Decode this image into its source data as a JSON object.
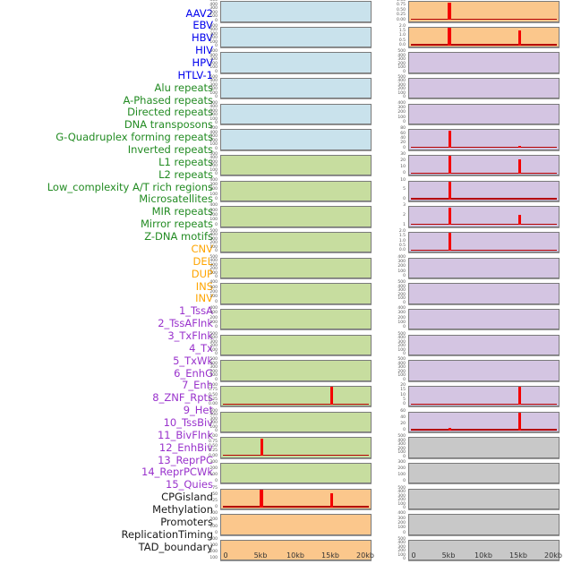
{
  "palette": {
    "virus_text": "#0000EE",
    "repeat_text": "#228B22",
    "sv_text": "#FFA500",
    "state_text": "#9932CC",
    "other_text": "#1A1A1A",
    "virus_bg": "#C9E2EC",
    "repeat_bg": "#C7DD9F",
    "sv_bg": "#FBC78C",
    "state_bg": "#D4C5E2",
    "other_bg": "#C8C8C8",
    "spike_color": "#F40000",
    "baseline_color": "#B40000"
  },
  "chart_data": {
    "type": "line",
    "layout": "small-multiples, 22 rows x 2 columns; first 22 panels in left column (top to bottom), last 22 in right column",
    "x_ticks": [
      "0",
      "5kb",
      "10kb",
      "15kb",
      "20kb"
    ],
    "x_range_kb": [
      0,
      20
    ],
    "grid": false,
    "panels": [
      {
        "label": "AAV2",
        "group": "virus",
        "y_ticks": [
          "500",
          "400",
          "300",
          "200",
          "100",
          "0"
        ],
        "baseline": false,
        "spikes": []
      },
      {
        "label": "EBV",
        "group": "virus",
        "y_ticks": [
          "500",
          "400",
          "300",
          "200",
          "100",
          "0"
        ],
        "baseline": false,
        "spikes": []
      },
      {
        "label": "HBV",
        "group": "virus",
        "y_ticks": [
          "500",
          "400",
          "300",
          "200",
          "100",
          "0"
        ],
        "baseline": false,
        "spikes": []
      },
      {
        "label": "HIV",
        "group": "virus",
        "y_ticks": [
          "500",
          "400",
          "300",
          "200",
          "100",
          "0"
        ],
        "baseline": false,
        "spikes": []
      },
      {
        "label": "HPV",
        "group": "virus",
        "y_ticks": [
          "500",
          "400",
          "300",
          "200",
          "100",
          "0"
        ],
        "baseline": false,
        "spikes": []
      },
      {
        "label": "HTLV-1",
        "group": "virus",
        "y_ticks": [
          "500",
          "400",
          "300",
          "200",
          "100",
          "0"
        ],
        "baseline": false,
        "spikes": []
      },
      {
        "label": "Alu repeats",
        "group": "repeat",
        "y_ticks": [
          "500",
          "400",
          "300",
          "200",
          "100",
          "0"
        ],
        "baseline": false,
        "spikes": []
      },
      {
        "label": "A-Phased repeats",
        "group": "repeat",
        "y_ticks": [
          "400",
          "300",
          "200",
          "100",
          "0"
        ],
        "baseline": false,
        "spikes": []
      },
      {
        "label": "Directed repeats",
        "group": "repeat",
        "y_ticks": [
          "400",
          "300",
          "200",
          "100",
          "0"
        ],
        "baseline": false,
        "spikes": []
      },
      {
        "label": "DNA transposons",
        "group": "repeat",
        "y_ticks": [
          "500",
          "400",
          "300",
          "200",
          "100",
          "0"
        ],
        "baseline": false,
        "spikes": []
      },
      {
        "label": "G-Quadruplex forming repeats",
        "group": "repeat",
        "y_ticks": [
          "500",
          "400",
          "300",
          "200",
          "100",
          "0"
        ],
        "baseline": false,
        "spikes": []
      },
      {
        "label": "Inverted repeats",
        "group": "repeat",
        "y_ticks": [
          "400",
          "300",
          "200",
          "100",
          "0"
        ],
        "baseline": false,
        "spikes": []
      },
      {
        "label": "L1 repeats",
        "group": "repeat",
        "y_ticks": [
          "400",
          "300",
          "200",
          "100",
          "0"
        ],
        "baseline": false,
        "spikes": []
      },
      {
        "label": "L2 repeats",
        "group": "repeat",
        "y_ticks": [
          "500",
          "400",
          "300",
          "200",
          "100",
          "0"
        ],
        "baseline": false,
        "spikes": []
      },
      {
        "label": "Low_complexity A/T rich regions",
        "group": "repeat",
        "y_ticks": [
          "500",
          "400",
          "300",
          "200",
          "100",
          "0"
        ],
        "baseline": false,
        "spikes": []
      },
      {
        "label": "Microsatellites",
        "group": "repeat",
        "y_ticks": [
          "1.00",
          "0.75",
          "0.50",
          "0.25",
          "0.00"
        ],
        "baseline": true,
        "spikes": [
          {
            "x_kb": 15,
            "h": 1.0,
            "wide": false
          }
        ]
      },
      {
        "label": "MIR repeats",
        "group": "repeat",
        "y_ticks": [
          "500",
          "400",
          "300",
          "200",
          "100",
          "0"
        ],
        "baseline": false,
        "spikes": []
      },
      {
        "label": "Mirror repeats",
        "group": "repeat",
        "y_ticks": [
          "1.00",
          "0.75",
          "0.50",
          "0.25",
          "0.00"
        ],
        "baseline": true,
        "spikes": [
          {
            "x_kb": 5,
            "h": 1.0,
            "wide": false
          }
        ]
      },
      {
        "label": "Z-DNA motifs",
        "group": "repeat",
        "y_ticks": [
          "300",
          "200",
          "100",
          "0"
        ],
        "baseline": false,
        "spikes": []
      },
      {
        "label": "CNV",
        "group": "sv",
        "y_ticks": [
          "75",
          "50",
          "25",
          "0"
        ],
        "baseline": true,
        "spikes": [
          {
            "x_kb": 5,
            "h": 1.0,
            "wide": true
          },
          {
            "x_kb": 15,
            "h": 0.8,
            "wide": false
          }
        ]
      },
      {
        "label": "DEL",
        "group": "sv",
        "y_ticks": [
          "300",
          "200",
          "100",
          "0"
        ],
        "baseline": false,
        "spikes": []
      },
      {
        "label": "DUP",
        "group": "sv",
        "y_ticks": [
          "400",
          "300",
          "200",
          "100"
        ],
        "baseline": false,
        "spikes": []
      },
      {
        "label": "INS",
        "group": "sv",
        "y_ticks": [
          "1.00",
          "0.75",
          "0.50",
          "0.25",
          "0.00"
        ],
        "baseline": true,
        "spikes": [
          {
            "x_kb": 5,
            "h": 1.0,
            "wide": true
          }
        ]
      },
      {
        "label": "INV",
        "group": "sv",
        "y_ticks": [
          "2.0",
          "1.5",
          "1.0",
          "0.5",
          "0.0"
        ],
        "baseline": true,
        "spikes": [
          {
            "x_kb": 5,
            "h": 1.0,
            "wide": true
          },
          {
            "x_kb": 15,
            "h": 0.85,
            "wide": false
          }
        ]
      },
      {
        "label": "1_TssA",
        "group": "state",
        "y_ticks": [
          "500",
          "400",
          "300",
          "200",
          "100",
          "0"
        ],
        "baseline": false,
        "spikes": []
      },
      {
        "label": "2_TssAFlnk",
        "group": "state",
        "y_ticks": [
          "500",
          "400",
          "300",
          "200",
          "100",
          "0"
        ],
        "baseline": false,
        "spikes": []
      },
      {
        "label": "3_TxFlnk",
        "group": "state",
        "y_ticks": [
          "400",
          "300",
          "200",
          "100",
          "0"
        ],
        "baseline": false,
        "spikes": []
      },
      {
        "label": "4_Tx",
        "group": "state",
        "y_ticks": [
          "80",
          "60",
          "40",
          "20",
          "0"
        ],
        "baseline": true,
        "spikes": [
          {
            "x_kb": 5,
            "h": 1.0,
            "wide": false
          },
          {
            "x_kb": 15,
            "h": 0.12,
            "wide": false
          }
        ]
      },
      {
        "label": "5_TxWk",
        "group": "state",
        "y_ticks": [
          "30",
          "20",
          "10",
          "0"
        ],
        "baseline": true,
        "spikes": [
          {
            "x_kb": 5,
            "h": 1.0,
            "wide": false
          },
          {
            "x_kb": 15,
            "h": 0.8,
            "wide": false
          }
        ]
      },
      {
        "label": "6_EnhG",
        "group": "state",
        "y_ticks": [
          "10",
          "5",
          "0"
        ],
        "baseline": true,
        "spikes": [
          {
            "x_kb": 5,
            "h": 1.0,
            "wide": false
          }
        ]
      },
      {
        "label": "7_Enh",
        "group": "state",
        "y_ticks": [
          "3",
          "2",
          "1"
        ],
        "baseline": true,
        "spikes": [
          {
            "x_kb": 5,
            "h": 1.0,
            "wide": false
          },
          {
            "x_kb": 15,
            "h": 0.6,
            "wide": false
          }
        ]
      },
      {
        "label": "8_ZNF_Rpts",
        "group": "state",
        "y_ticks": [
          "2.0",
          "1.5",
          "1.0",
          "0.5",
          "0.0"
        ],
        "baseline": true,
        "spikes": [
          {
            "x_kb": 5,
            "h": 1.0,
            "wide": false
          }
        ]
      },
      {
        "label": "9_Het",
        "group": "state",
        "y_ticks": [
          "400",
          "300",
          "200",
          "100",
          "0"
        ],
        "baseline": false,
        "spikes": []
      },
      {
        "label": "10_TssBiv",
        "group": "state",
        "y_ticks": [
          "500",
          "400",
          "300",
          "200",
          "100",
          "0"
        ],
        "baseline": false,
        "spikes": []
      },
      {
        "label": "11_BivFlnk",
        "group": "state",
        "y_ticks": [
          "400",
          "300",
          "200",
          "100",
          "0"
        ],
        "baseline": false,
        "spikes": []
      },
      {
        "label": "12_EnhBiv",
        "group": "state",
        "y_ticks": [
          "500",
          "400",
          "300",
          "200",
          "100",
          "0"
        ],
        "baseline": false,
        "spikes": []
      },
      {
        "label": "13_ReprPC",
        "group": "state",
        "y_ticks": [
          "500",
          "400",
          "300",
          "200",
          "100",
          "0"
        ],
        "baseline": false,
        "spikes": []
      },
      {
        "label": "14_ReprPCWk",
        "group": "state",
        "y_ticks": [
          "20",
          "15",
          "10",
          "5",
          "0"
        ],
        "baseline": true,
        "spikes": [
          {
            "x_kb": 15,
            "h": 1.0,
            "wide": false
          }
        ]
      },
      {
        "label": "15_Quies",
        "group": "state",
        "y_ticks": [
          "60",
          "40",
          "20",
          "0"
        ],
        "baseline": true,
        "spikes": [
          {
            "x_kb": 5,
            "h": 0.12,
            "wide": false
          },
          {
            "x_kb": 15,
            "h": 1.0,
            "wide": false
          }
        ]
      },
      {
        "label": "CPGisland",
        "group": "other",
        "y_ticks": [
          "500",
          "400",
          "300",
          "200",
          "100",
          "0"
        ],
        "baseline": false,
        "spikes": []
      },
      {
        "label": "Methylation",
        "group": "other",
        "y_ticks": [
          "300",
          "200",
          "100",
          "0"
        ],
        "baseline": false,
        "spikes": []
      },
      {
        "label": "Promoters",
        "group": "other",
        "y_ticks": [
          "500",
          "400",
          "300",
          "200",
          "100",
          "0"
        ],
        "baseline": false,
        "spikes": []
      },
      {
        "label": "ReplicationTiming",
        "group": "other",
        "y_ticks": [
          "400",
          "300",
          "200",
          "100",
          "0"
        ],
        "baseline": false,
        "spikes": []
      },
      {
        "label": "TAD_boundary",
        "group": "other",
        "y_ticks": [
          "500",
          "400",
          "300",
          "200",
          "100",
          "0"
        ],
        "baseline": false,
        "spikes": []
      }
    ]
  }
}
